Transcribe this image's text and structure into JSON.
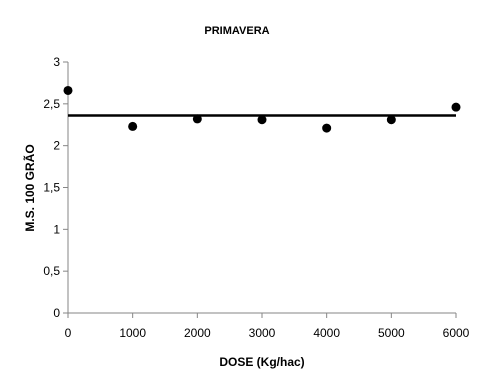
{
  "chart_data": {
    "type": "scatter",
    "title": "PRIMAVERA",
    "xlabel": "DOSE (Kg/hac)",
    "ylabel": "M.S. 100 GRÃO",
    "xlim": [
      0,
      6000
    ],
    "ylim": [
      0,
      3
    ],
    "x_ticks": [
      0,
      1000,
      2000,
      3000,
      4000,
      5000,
      6000
    ],
    "x_tick_labels": [
      "0",
      "1000",
      "2000",
      "3000",
      "4000",
      "5000",
      "6000"
    ],
    "y_ticks": [
      0,
      0.5,
      1,
      1.5,
      2,
      2.5,
      3
    ],
    "y_tick_labels": [
      "0",
      "0,5",
      "1",
      "1,5",
      "2",
      "2,5",
      "3"
    ],
    "grid": false,
    "legend": "none",
    "series": [
      {
        "x": [
          0,
          1000,
          2000,
          3000,
          4000,
          5000,
          6000
        ],
        "y": [
          2.66,
          2.23,
          2.32,
          2.31,
          2.21,
          2.31,
          2.46
        ],
        "marker": "circle",
        "color": "#000000"
      }
    ],
    "reference_line": {
      "y": 2.36,
      "color": "#000000"
    }
  }
}
